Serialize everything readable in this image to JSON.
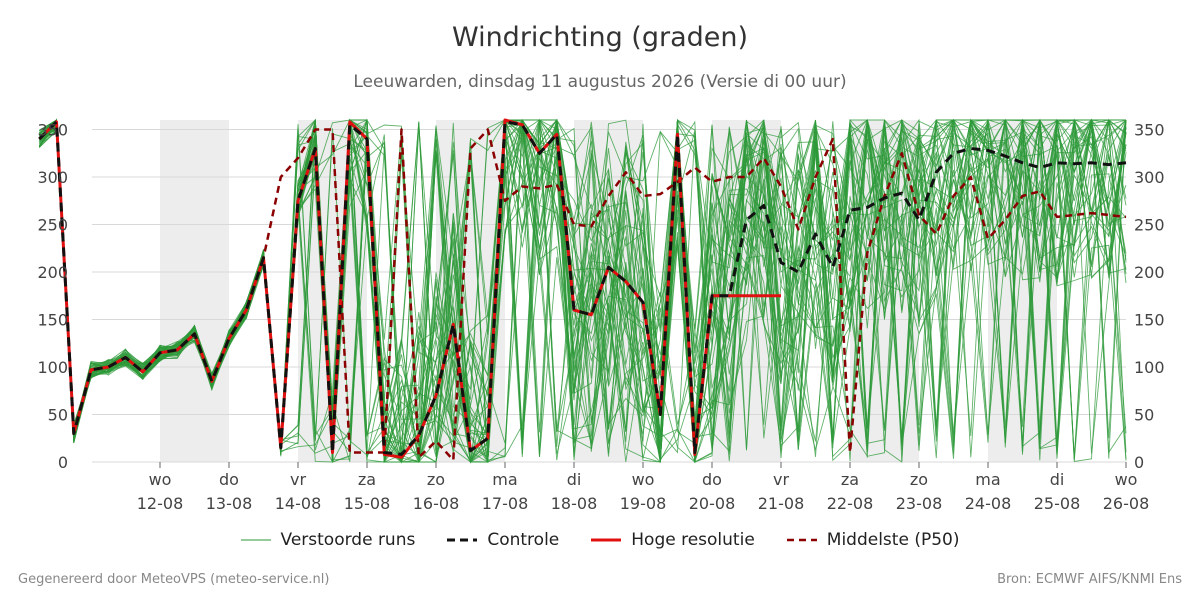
{
  "header": {
    "title": "Windrichting (graden)",
    "subtitle": "Leeuwarden, dinsdag 11 augustus 2026 (Versie di 00 uur)"
  },
  "footer": {
    "left": "Gegenereerd door MeteoVPS (meteo-service.nl)",
    "right": "Bron: ECMWF AIFS/KNMI Ens"
  },
  "legend": [
    {
      "label": "Verstoorde runs",
      "color": "#2e9a3a",
      "style": "thin"
    },
    {
      "label": "Controle",
      "color": "#111111",
      "style": "dashed"
    },
    {
      "label": "Hoge resolutie",
      "color": "#e01010",
      "style": "solid"
    },
    {
      "label": "Middelste (P50)",
      "color": "#8b0000",
      "style": "dashed"
    }
  ],
  "chart_data": {
    "type": "line",
    "title": "Windrichting (graden)",
    "ylim": [
      0,
      360
    ],
    "yticks": [
      0,
      50,
      100,
      150,
      200,
      250,
      300,
      350
    ],
    "xlim": [
      0,
      15
    ],
    "x_unit": "dagen na 11-08-2026 00 uur",
    "xticks": [
      {
        "x": 1,
        "day": "wo",
        "date": "12-08"
      },
      {
        "x": 2,
        "day": "do",
        "date": "13-08"
      },
      {
        "x": 3,
        "day": "vr",
        "date": "14-08"
      },
      {
        "x": 4,
        "day": "za",
        "date": "15-08"
      },
      {
        "x": 5,
        "day": "zo",
        "date": "16-08"
      },
      {
        "x": 6,
        "day": "ma",
        "date": "17-08"
      },
      {
        "x": 7,
        "day": "di",
        "date": "18-08"
      },
      {
        "x": 8,
        "day": "wo",
        "date": "19-08"
      },
      {
        "x": 9,
        "day": "do",
        "date": "20-08"
      },
      {
        "x": 10,
        "day": "vr",
        "date": "21-08"
      },
      {
        "x": 11,
        "day": "za",
        "date": "22-08"
      },
      {
        "x": 12,
        "day": "zo",
        "date": "23-08"
      },
      {
        "x": 13,
        "day": "ma",
        "date": "24-08"
      },
      {
        "x": 14,
        "day": "di",
        "date": "25-08"
      },
      {
        "x": 15,
        "day": "wo",
        "date": "26-08"
      }
    ],
    "weekend_bands": [
      [
        1,
        2
      ],
      [
        3,
        4
      ],
      [
        5,
        6
      ],
      [
        7,
        8
      ],
      [
        9,
        10
      ],
      [
        11,
        12
      ],
      [
        13,
        14
      ]
    ],
    "grid": true,
    "legend_position": "bottom",
    "series": [
      {
        "name": "Controle",
        "color": "#111111",
        "x": [
          -0.75,
          -0.5,
          -0.25,
          0,
          0.25,
          0.5,
          0.75,
          1,
          1.25,
          1.5,
          1.75,
          2,
          2.25,
          2.5,
          2.75,
          3,
          3.25,
          3.5,
          3.75,
          4,
          4.25,
          4.5,
          4.75,
          5,
          5.25,
          5.5,
          5.75,
          6,
          6.25,
          6.5,
          6.75,
          7,
          7.25,
          7.5,
          7.75,
          8,
          8.25,
          8.5,
          8.75,
          9,
          9.25,
          9.5,
          9.75,
          10,
          10.25,
          10.5,
          10.75,
          11,
          11.25,
          11.5,
          11.75,
          12,
          12.25,
          12.5,
          12.75,
          13,
          13.25,
          13.5,
          13.75,
          14,
          14.25,
          14.5,
          14.75,
          15
        ],
        "values": [
          340,
          358,
          30,
          97,
          100,
          110,
          95,
          115,
          118,
          135,
          85,
          130,
          160,
          215,
          15,
          275,
          330,
          10,
          355,
          340,
          10,
          8,
          28,
          70,
          145,
          12,
          25,
          358,
          355,
          325,
          345,
          160,
          155,
          205,
          190,
          168,
          50,
          345,
          10,
          175,
          175,
          255,
          270,
          210,
          200,
          240,
          205,
          265,
          268,
          278,
          283,
          255,
          305,
          325,
          330,
          328,
          322,
          315,
          310,
          315,
          314,
          315,
          313,
          315
        ]
      },
      {
        "name": "Hoge resolutie",
        "color": "#e01010",
        "x": [
          -0.75,
          -0.5,
          -0.25,
          0,
          0.25,
          0.5,
          0.75,
          1,
          1.25,
          1.5,
          1.75,
          2,
          2.25,
          2.5,
          2.75,
          3,
          3.25,
          3.5,
          3.75,
          4,
          4.25,
          4.5,
          4.75,
          5,
          5.25,
          5.5,
          5.75,
          6,
          6.25,
          6.5,
          6.75,
          7,
          7.25,
          7.5,
          7.75,
          8,
          8.25,
          8.5,
          8.75,
          9,
          9.25,
          9.5,
          9.75,
          10
        ],
        "values": [
          340,
          358,
          30,
          97,
          100,
          110,
          95,
          115,
          118,
          135,
          85,
          130,
          160,
          215,
          15,
          275,
          330,
          10,
          358,
          340,
          8,
          5,
          28,
          70,
          145,
          12,
          25,
          360,
          355,
          325,
          345,
          160,
          155,
          205,
          190,
          168,
          50,
          345,
          8,
          175,
          175,
          175,
          175,
          175
        ]
      },
      {
        "name": "Middelste (P50)",
        "color": "#8b0000",
        "x": [
          -0.75,
          -0.5,
          -0.25,
          0,
          0.25,
          0.5,
          0.75,
          1,
          1.25,
          1.5,
          1.75,
          2,
          2.25,
          2.5,
          2.75,
          3,
          3.25,
          3.5,
          3.75,
          4,
          4.25,
          4.5,
          4.75,
          5,
          5.25,
          5.5,
          5.75,
          6,
          6.25,
          6.5,
          6.75,
          7,
          7.25,
          7.5,
          7.75,
          8,
          8.25,
          8.5,
          8.75,
          9,
          9.25,
          9.5,
          9.75,
          10,
          10.25,
          10.5,
          10.75,
          11,
          11.25,
          11.5,
          11.75,
          12,
          12.25,
          12.5,
          12.75,
          13,
          13.25,
          13.5,
          13.75,
          14,
          14.25,
          14.5,
          14.75,
          15
        ],
        "values": [
          340,
          358,
          30,
          97,
          100,
          110,
          95,
          115,
          118,
          135,
          85,
          130,
          160,
          215,
          300,
          320,
          350,
          350,
          10,
          10,
          10,
          350,
          5,
          22,
          2,
          330,
          350,
          275,
          290,
          288,
          292,
          250,
          248,
          280,
          305,
          280,
          282,
          295,
          310,
          295,
          300,
          300,
          320,
          290,
          245,
          300,
          340,
          10,
          220,
          280,
          325,
          260,
          240,
          280,
          300,
          235,
          255,
          280,
          285,
          258,
          260,
          262,
          260,
          258
        ]
      }
    ]
  }
}
